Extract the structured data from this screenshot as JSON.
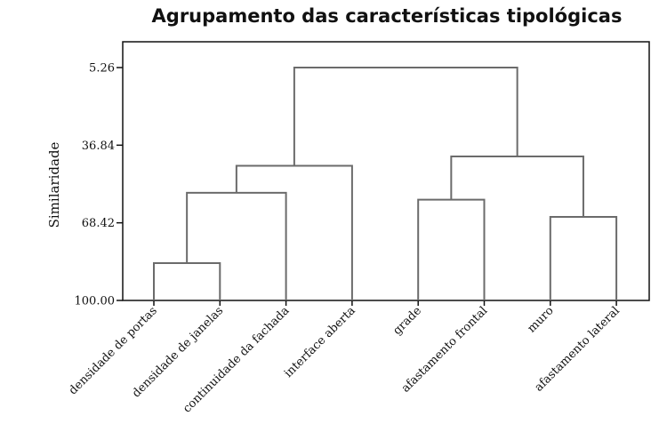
{
  "chart_data": {
    "type": "dendrogram",
    "title": "Agrupamento das características tipológicas",
    "ylabel": "Similaridade",
    "y_ticks": [
      "5.26",
      "36.84",
      "68.42",
      "100.00"
    ],
    "ylim": [
      100.0,
      5.26
    ],
    "leaves": [
      "densidade de portas",
      "densidade de janelas",
      "continuidade da fachada",
      "interface aberta",
      "grade",
      "afastamento frontal",
      "muro",
      "afastamento lateral"
    ],
    "merges": [
      {
        "left": 0,
        "right": 1,
        "similarity": 84.8
      },
      {
        "left": 4,
        "right": 5,
        "similarity": 59.0
      },
      {
        "left": 6,
        "right": 7,
        "similarity": 66.0
      },
      {
        "left": 8,
        "right": 2,
        "similarity": 56.2
      },
      {
        "left": 11,
        "right": 3,
        "similarity": 45.2
      },
      {
        "left": 9,
        "right": 10,
        "similarity": 41.4
      },
      {
        "left": 12,
        "right": 13,
        "similarity": 5.26
      }
    ]
  }
}
